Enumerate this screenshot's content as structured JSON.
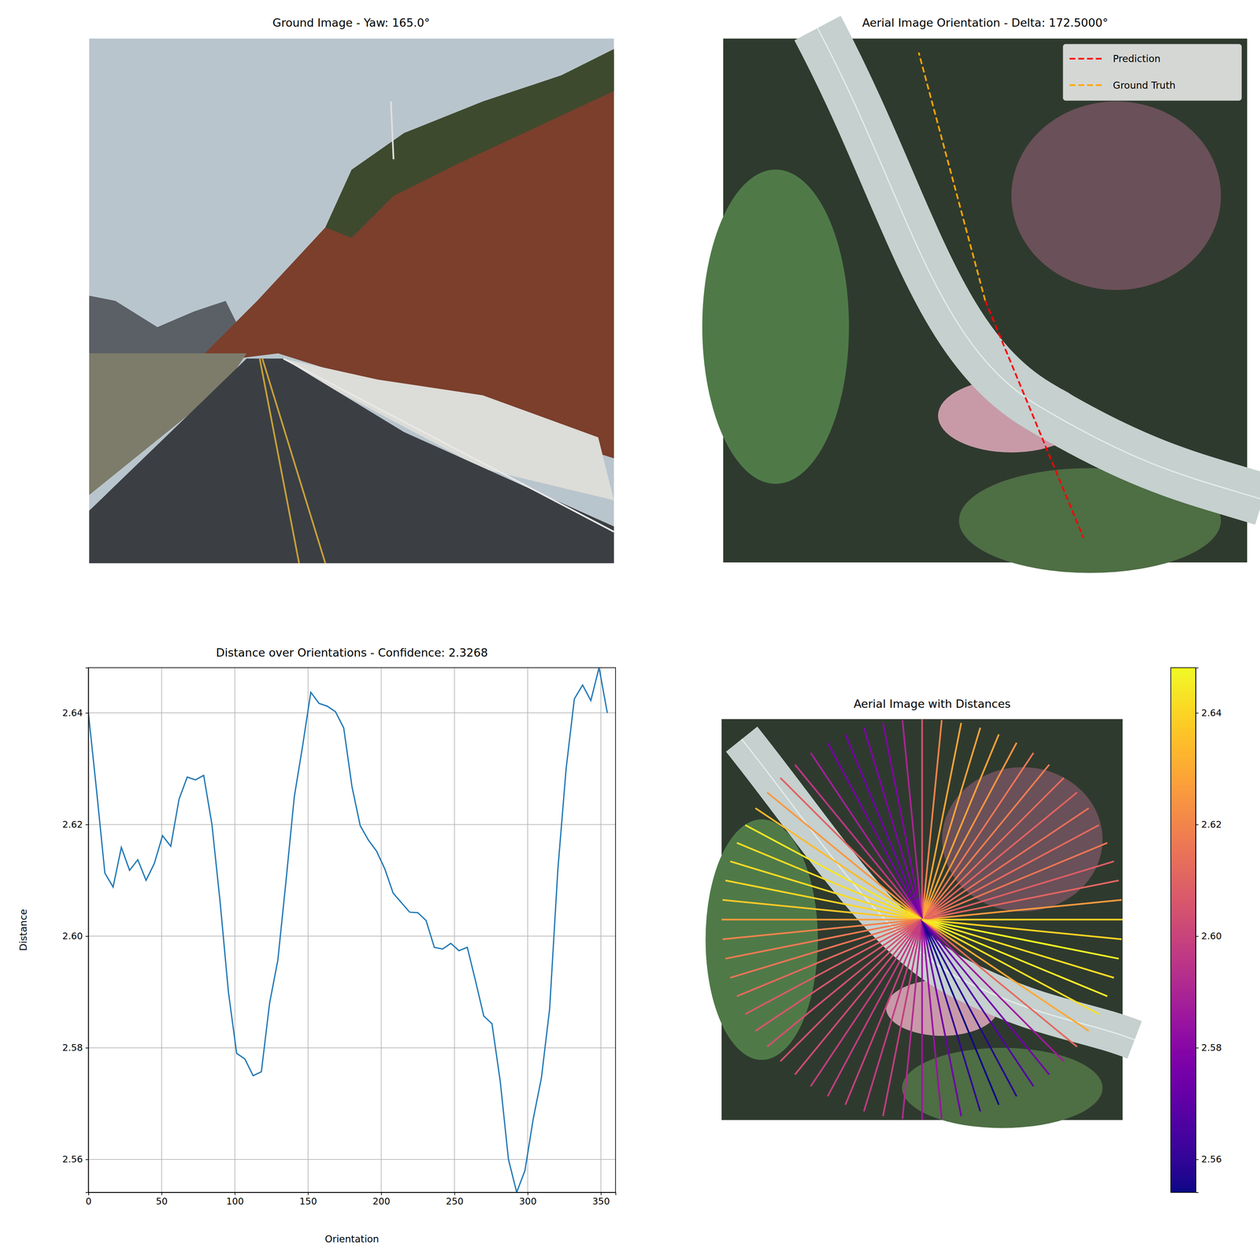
{
  "chart_data": [
    {
      "type": "image",
      "title": "Ground Image - Yaw: 165.0°"
    },
    {
      "type": "orientation",
      "title": "Aerial Image Orientation - Delta: 172.5000°",
      "legend": "upper right",
      "series": [
        {
          "name": "Prediction",
          "color": "#ff0000",
          "line_style": "dashed",
          "angle": 292.5
        },
        {
          "name": "Ground Truth",
          "color": "#ffa500",
          "line_style": "dashed",
          "angle": 105.0
        }
      ]
    },
    {
      "type": "line",
      "title": "Distance over Orientations - Confidence: 2.3268",
      "x_label": "Orientation",
      "y_label": "Distance",
      "color": "#1f77b4",
      "grid": true,
      "x": [
        0,
        5.625,
        11.25,
        16.875,
        22.5,
        28.125,
        33.75,
        39.375,
        45,
        50.625,
        56.25,
        61.875,
        67.5,
        73.125,
        78.75,
        84.375,
        90,
        95.625,
        101.25,
        106.875,
        112.5,
        118.125,
        123.75,
        129.375,
        135,
        140.625,
        146.25,
        151.875,
        157.5,
        163.125,
        168.75,
        174.375,
        180,
        185.625,
        191.25,
        196.875,
        202.5,
        208.125,
        213.75,
        219.375,
        225,
        230.625,
        236.25,
        241.875,
        247.5,
        253.125,
        258.75,
        264.375,
        270,
        275.625,
        281.25,
        286.875,
        292.5,
        298.125,
        303.75,
        309.375,
        315,
        320.625,
        326.25,
        331.875,
        337.5,
        343.125,
        348.75,
        354.375
      ],
      "values": [
        2.64,
        2.626,
        2.6113,
        2.6088,
        2.6159,
        2.6118,
        2.6137,
        2.61,
        2.613,
        2.618,
        2.6161,
        2.6245,
        2.6285,
        2.628,
        2.6288,
        2.62,
        2.606,
        2.59,
        2.579,
        2.578,
        2.575,
        2.5757,
        2.588,
        2.5957,
        2.61,
        2.625,
        2.634,
        2.6437,
        2.6417,
        2.6412,
        2.6402,
        2.6373,
        2.6268,
        2.6198,
        2.6172,
        2.6152,
        2.612,
        2.6077,
        2.606,
        2.6043,
        2.6042,
        2.6028,
        2.598,
        2.5977,
        2.5987,
        2.5974,
        2.598,
        2.592,
        2.5857,
        2.5843,
        2.574,
        2.56,
        2.5541,
        2.558,
        2.5672,
        2.5746,
        2.587,
        2.612,
        2.63,
        2.6425,
        2.645,
        2.6422,
        2.6481,
        2.64
      ],
      "xlim": [
        0,
        360
      ],
      "ylim": [
        2.5541,
        2.6481
      ],
      "xticks": [
        0,
        50,
        100,
        150,
        200,
        250,
        300,
        350
      ],
      "yticks": [
        2.56,
        2.58,
        {
          "value": 2.6,
          "label": "2.60"
        },
        2.62,
        2.64
      ]
    },
    {
      "type": "radial",
      "title": "Aerial Image with Distances",
      "x": [
        0,
        5.625,
        11.25,
        16.875,
        22.5,
        28.125,
        33.75,
        39.375,
        45,
        50.625,
        56.25,
        61.875,
        67.5,
        73.125,
        78.75,
        84.375,
        90,
        95.625,
        101.25,
        106.875,
        112.5,
        118.125,
        123.75,
        129.375,
        135,
        140.625,
        146.25,
        151.875,
        157.5,
        163.125,
        168.75,
        174.375,
        180,
        185.625,
        191.25,
        196.875,
        202.5,
        208.125,
        213.75,
        219.375,
        225,
        230.625,
        236.25,
        241.875,
        247.5,
        253.125,
        258.75,
        264.375,
        270,
        275.625,
        281.25,
        286.875,
        292.5,
        298.125,
        303.75,
        309.375,
        315,
        320.625,
        326.25,
        331.875,
        337.5,
        343.125,
        348.75,
        354.375
      ],
      "values": [
        2.64,
        2.626,
        2.6113,
        2.6088,
        2.6159,
        2.6118,
        2.6137,
        2.61,
        2.613,
        2.618,
        2.6161,
        2.6245,
        2.6285,
        2.628,
        2.6288,
        2.62,
        2.606,
        2.59,
        2.579,
        2.578,
        2.575,
        2.5757,
        2.588,
        2.5957,
        2.61,
        2.625,
        2.634,
        2.6437,
        2.6417,
        2.6412,
        2.6402,
        2.6373,
        2.6268,
        2.6198,
        2.6172,
        2.6152,
        2.612,
        2.6077,
        2.606,
        2.6043,
        2.6042,
        2.6028,
        2.598,
        2.5977,
        2.5987,
        2.5974,
        2.598,
        2.592,
        2.5857,
        2.5843,
        2.574,
        2.56,
        2.5541,
        2.558,
        2.5672,
        2.5746,
        2.587,
        2.612,
        2.63,
        2.6425,
        2.645,
        2.6422,
        2.6481,
        2.64
      ],
      "colorbar": {
        "range": [
          2.5541,
          2.6481
        ],
        "ticks": [
          2.56,
          2.58,
          {
            "value": 2.6,
            "label": "2.60"
          },
          2.62,
          2.64
        ]
      }
    }
  ]
}
